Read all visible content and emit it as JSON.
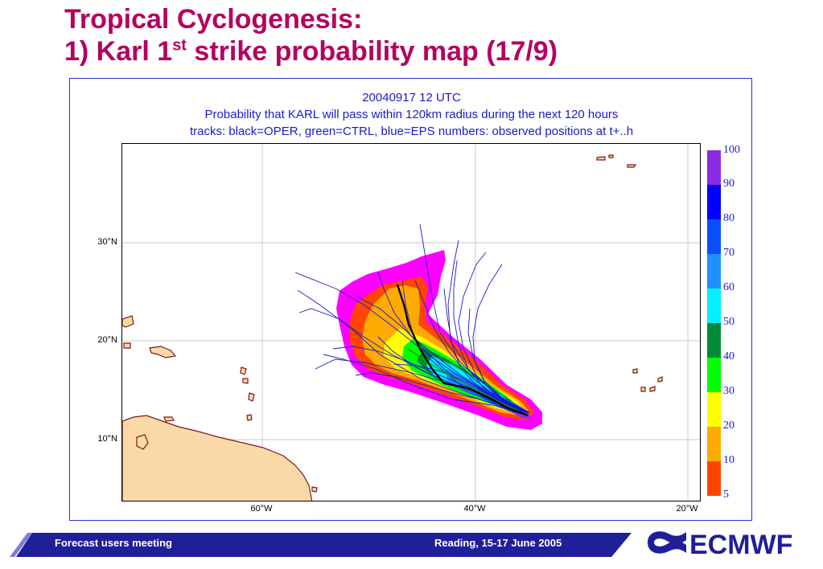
{
  "slide": {
    "title_line1": "Tropical Cyclogenesis:",
    "title_line2_pre": "1) Karl 1",
    "title_line2_sup": "st",
    "title_line2_post": " strike probability map (17/9)"
  },
  "map": {
    "caption_line1": "20040917 12 UTC",
    "caption_line2": "Probability that KARL will pass within 120km radius during the next 120 hours",
    "caption_line3": "tracks: black=OPER, green=CTRL, blue=EPS numbers: observed positions at t+..h",
    "lat_labels": [
      "30°N",
      "20°N",
      "10°N"
    ],
    "lon_labels": [
      "60°W",
      "40°W",
      "20°W"
    ],
    "colors": {
      "land": "#f9d9a8",
      "coast": "#7a1a1a",
      "grid": "#b8b8b8",
      "oper_track": "#000000",
      "ctrl_track": "#00aa00",
      "eps_track": "#1a1acc"
    }
  },
  "legend": {
    "levels": [
      "100",
      "90",
      "80",
      "70",
      "60",
      "50",
      "40",
      "30",
      "20",
      "10",
      "5"
    ],
    "colors": [
      "#8a2be2",
      "#0000ff",
      "#0a50ff",
      "#1e90ff",
      "#00f0ff",
      "#008c32",
      "#00ff00",
      "#ffff00",
      "#ffaa00",
      "#ff4500",
      "#ff00ff"
    ]
  },
  "footer": {
    "left_text": "Forecast users meeting",
    "right_text": "Reading, 15-17 June 2005",
    "logo_text": "ECMWF",
    "band_color": "#1f1f99"
  }
}
